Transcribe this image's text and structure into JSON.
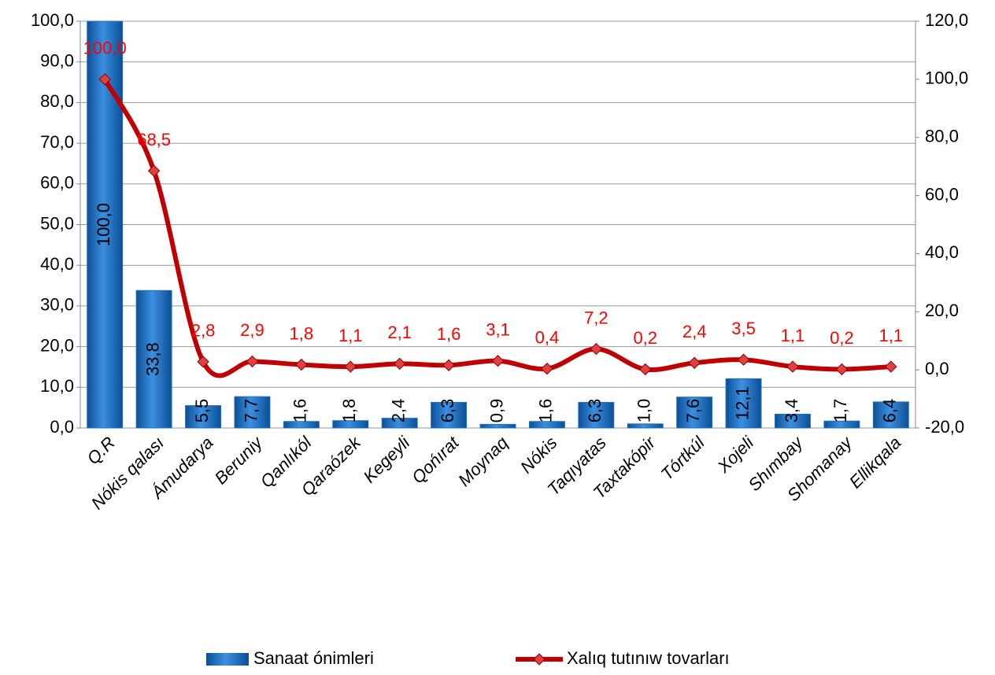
{
  "chart_data": {
    "type": "bar",
    "categories": [
      "Q.R",
      "Nókis qalası",
      "Ámudarya",
      "Beruniy",
      "Qanlıkól",
      "Qaraózek",
      "Kegeyli",
      "Qońırat",
      "Moynaq",
      "Nókis",
      "Taqıyatas",
      "Taxtakópir",
      "Tórtkúl",
      "Xojeli",
      "Shımbay",
      "Shomanay",
      "Ellikqala"
    ],
    "series": [
      {
        "name": "Sanaat ónimleri",
        "type": "bar",
        "color": "#1f6fc1",
        "values": [
          100.0,
          33.8,
          5.5,
          7.7,
          1.6,
          1.8,
          2.4,
          6.3,
          0.9,
          1.6,
          6.3,
          1.0,
          7.6,
          12.1,
          3.4,
          1.7,
          6.4
        ],
        "value_labels": [
          "100,0",
          "33,8",
          "5,5",
          "7,7",
          "1,6",
          "1,8",
          "2,4",
          "6,3",
          "0,9",
          "1,6",
          "6,3",
          "1,0",
          "7,6",
          "12,1",
          "3,4",
          "1,7",
          "6,4"
        ]
      },
      {
        "name": "Xalıq tutınıw tovarları",
        "type": "line",
        "axis": "y2",
        "color": "#c00000",
        "values": [
          100.0,
          68.5,
          2.8,
          2.9,
          1.8,
          1.1,
          2.1,
          1.6,
          3.1,
          0.4,
          7.2,
          0.2,
          2.4,
          3.5,
          1.1,
          0.2,
          1.1
        ],
        "value_labels": [
          "100,0",
          "68,5",
          "2,8",
          "2,9",
          "1,8",
          "1,1",
          "2,1",
          "1,6",
          "3,1",
          "0,4",
          "7,2",
          "0,2",
          "2,4",
          "3,5",
          "1,1",
          "0,2",
          "1,1"
        ]
      }
    ],
    "ylim": [
      0,
      100
    ],
    "yticks": [
      {
        "value": 0,
        "label": "0,0"
      },
      {
        "value": 10,
        "label": "10,0"
      },
      {
        "value": 20,
        "label": "20,0"
      },
      {
        "value": 30,
        "label": "30,0"
      },
      {
        "value": 40,
        "label": "40,0"
      },
      {
        "value": 50,
        "label": "50,0"
      },
      {
        "value": 60,
        "label": "60,0"
      },
      {
        "value": 70,
        "label": "70,0"
      },
      {
        "value": 80,
        "label": "80,0"
      },
      {
        "value": 90,
        "label": "90,0"
      },
      {
        "value": 100,
        "label": "100,0"
      }
    ],
    "y2lim": [
      -20,
      120
    ],
    "y2ticks": [
      {
        "value": -20,
        "label": "-20,0"
      },
      {
        "value": 0,
        "label": "0,0"
      },
      {
        "value": 20,
        "label": "20,0"
      },
      {
        "value": 40,
        "label": "40,0"
      },
      {
        "value": 60,
        "label": "60,0"
      },
      {
        "value": 80,
        "label": "80,0"
      },
      {
        "value": 100,
        "label": "100,0"
      },
      {
        "value": 120,
        "label": "120,0"
      }
    ],
    "grid": true,
    "legend": "bottom"
  }
}
